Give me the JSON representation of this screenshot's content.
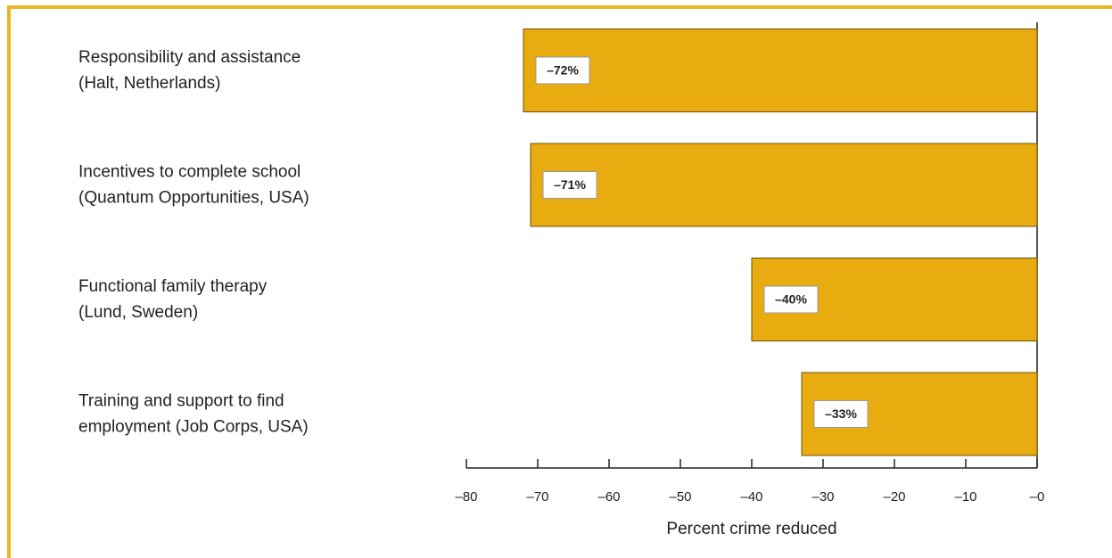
{
  "chart_data": {
    "type": "bar",
    "orientation": "horizontal",
    "categories": [
      [
        "Responsibility and assistance",
        "(Halt, Netherlands)"
      ],
      [
        "Incentives to complete school",
        "(Quantum Opportunities, USA)"
      ],
      [
        "Functional family therapy",
        "(Lund, Sweden)"
      ],
      [
        "Training and support to find",
        "employment (Job Corps, USA)"
      ]
    ],
    "values": [
      -72,
      -71,
      -40,
      -33
    ],
    "value_labels": [
      "–72%",
      "–71%",
      "–40%",
      "–33%"
    ],
    "color": "#e8ac10",
    "xlabel": "Percent crime reduced",
    "xlim": [
      -80,
      0
    ],
    "xticks": [
      {
        "value": -80,
        "label": "–80"
      },
      {
        "value": -70,
        "label": "–70"
      },
      {
        "value": -60,
        "label": "–60"
      },
      {
        "value": -50,
        "label": "–50"
      },
      {
        "value": -40,
        "label": "–40"
      },
      {
        "value": -30,
        "label": "–30"
      },
      {
        "value": -20,
        "label": "–20"
      },
      {
        "value": -10,
        "label": "–10"
      },
      {
        "value": 0,
        "label": "–0"
      }
    ]
  }
}
